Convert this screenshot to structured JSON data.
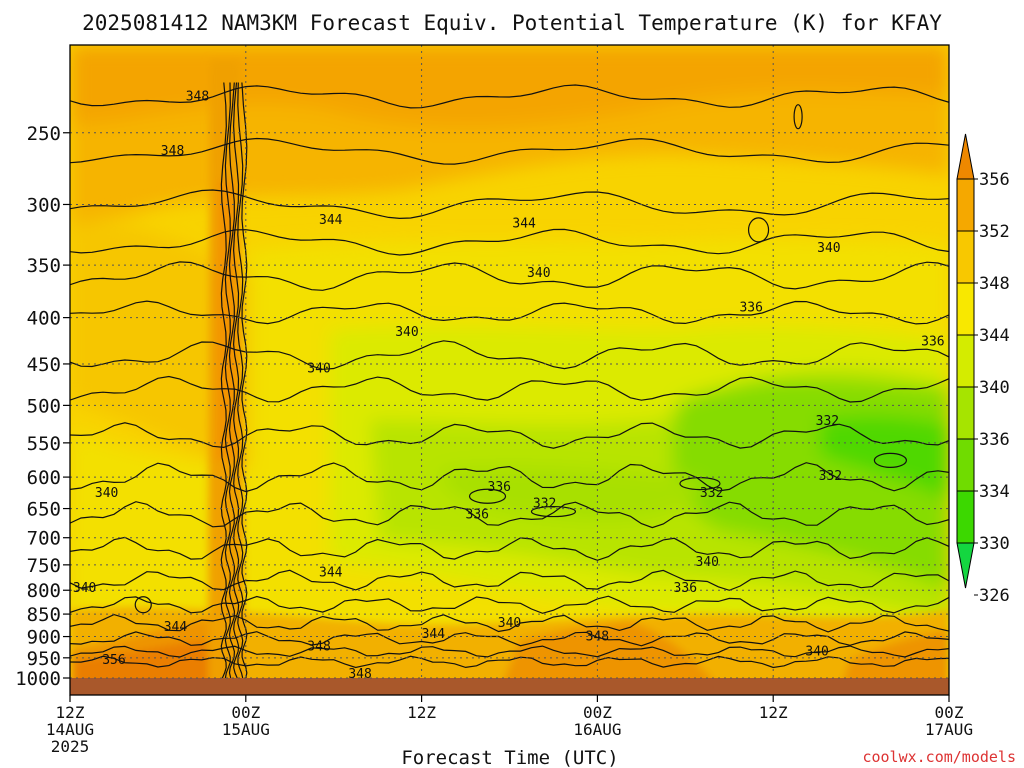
{
  "chart_data": {
    "type": "heatmap",
    "title": "2025081412 NAM3KM Forecast Equiv. Potential Temperature (K) for KFAY",
    "xlabel": "Forecast Time (UTC)",
    "ylabel": "",
    "x_ticks": [
      {
        "hour": 0,
        "line1": "12Z",
        "line2": "14AUG",
        "line3": "2025"
      },
      {
        "hour": 12,
        "line1": "00Z",
        "line2": "15AUG",
        "line3": ""
      },
      {
        "hour": 24,
        "line1": "12Z",
        "line2": "",
        "line3": ""
      },
      {
        "hour": 36,
        "line1": "00Z",
        "line2": "16AUG",
        "line3": ""
      },
      {
        "hour": 48,
        "line1": "12Z",
        "line2": "",
        "line3": ""
      },
      {
        "hour": 60,
        "line1": "00Z",
        "line2": "17AUG",
        "line3": ""
      }
    ],
    "xlim": [
      0,
      60
    ],
    "y_scale": "log-pressure",
    "y_ticks": [
      250,
      300,
      350,
      400,
      450,
      500,
      550,
      600,
      650,
      700,
      750,
      800,
      850,
      900,
      950,
      1000
    ],
    "ylim": [
      200,
      1000
    ],
    "grid": true,
    "colorbar": {
      "labels": [
        "356",
        "352",
        "348",
        "344",
        "340",
        "336",
        "334",
        "330",
        "326"
      ],
      "colors": [
        "#ee8800",
        "#f5a800",
        "#f8c800",
        "#f8e800",
        "#d4ec00",
        "#a6e400",
        "#70dc00",
        "#3cd800",
        "#14d640"
      ]
    },
    "contour_labels": [
      {
        "text": "348",
        "hour": 8.7,
        "hpa": 228
      },
      {
        "text": "348",
        "hour": 7.0,
        "hpa": 262
      },
      {
        "text": "344",
        "hour": 17.8,
        "hpa": 312
      },
      {
        "text": "344",
        "hour": 31.0,
        "hpa": 315
      },
      {
        "text": "340",
        "hour": 32.0,
        "hpa": 357
      },
      {
        "text": "340",
        "hour": 51.8,
        "hpa": 335
      },
      {
        "text": "336",
        "hour": 46.5,
        "hpa": 390
      },
      {
        "text": "340",
        "hour": 23.0,
        "hpa": 415
      },
      {
        "text": "340",
        "hour": 17.0,
        "hpa": 455
      },
      {
        "text": "336",
        "hour": 58.9,
        "hpa": 425
      },
      {
        "text": "332",
        "hour": 51.7,
        "hpa": 520
      },
      {
        "text": "332",
        "hour": 51.9,
        "hpa": 598
      },
      {
        "text": "336",
        "hour": 29.3,
        "hpa": 615
      },
      {
        "text": "332",
        "hour": 32.4,
        "hpa": 642
      },
      {
        "text": "332",
        "hour": 43.8,
        "hpa": 625
      },
      {
        "text": "336",
        "hour": 27.8,
        "hpa": 660
      },
      {
        "text": "340",
        "hour": 2.5,
        "hpa": 625
      },
      {
        "text": "340",
        "hour": 43.5,
        "hpa": 745
      },
      {
        "text": "336",
        "hour": 42.0,
        "hpa": 795
      },
      {
        "text": "344",
        "hour": 17.8,
        "hpa": 765
      },
      {
        "text": "340",
        "hour": 1.0,
        "hpa": 795
      },
      {
        "text": "340",
        "hour": 30.0,
        "hpa": 870
      },
      {
        "text": "344",
        "hour": 7.2,
        "hpa": 878
      },
      {
        "text": "344",
        "hour": 24.8,
        "hpa": 894
      },
      {
        "text": "348",
        "hour": 36.0,
        "hpa": 900
      },
      {
        "text": "348",
        "hour": 17.0,
        "hpa": 923
      },
      {
        "text": "356",
        "hour": 3.0,
        "hpa": 955
      },
      {
        "text": "348",
        "hour": 19.8,
        "hpa": 990
      },
      {
        "text": "340",
        "hour": 51.0,
        "hpa": 935
      }
    ],
    "surface_color": "#a9582b"
  },
  "footer": {
    "credit": "coolwx.com/models"
  }
}
